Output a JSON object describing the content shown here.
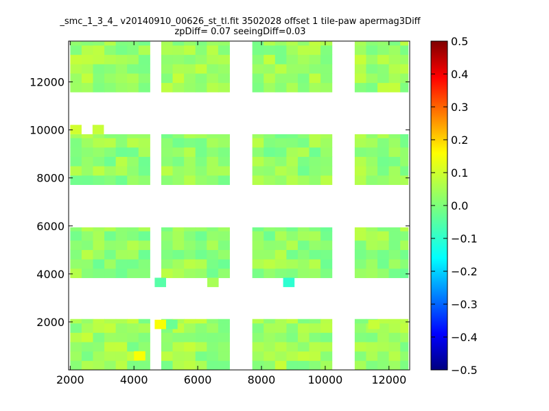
{
  "chart_data": {
    "type": "heatmap",
    "title_lines": [
      "_smc_1_3_4_ v20140910_00626_st_tl.fit 3502028 offset 1 tile-paw apermag3Diff",
      "zpDiff= 0.07 seeingDiff=0.03"
    ],
    "xlim": [
      1950,
      12650
    ],
    "ylim": [
      0,
      13700
    ],
    "xticks": [
      {
        "value": 2000,
        "label": "2000"
      },
      {
        "value": 4000,
        "label": "4000"
      },
      {
        "value": 6000,
        "label": "6000"
      },
      {
        "value": 8000,
        "label": "8000"
      },
      {
        "value": 10000,
        "label": "10000"
      },
      {
        "value": 12000,
        "label": "12000"
      }
    ],
    "yticks": [
      {
        "value": 2000,
        "label": "2000"
      },
      {
        "value": 4000,
        "label": "4000"
      },
      {
        "value": 6000,
        "label": "6000"
      },
      {
        "value": 8000,
        "label": "8000"
      },
      {
        "value": 10000,
        "label": "10000"
      },
      {
        "value": 12000,
        "label": "12000"
      }
    ],
    "colorbar": {
      "colormap": "jet",
      "range": [
        -0.5,
        0.5
      ],
      "ticks": [
        {
          "value": 0.5,
          "label": "0.5"
        },
        {
          "value": 0.4,
          "label": "0.4"
        },
        {
          "value": 0.3,
          "label": "0.3"
        },
        {
          "value": 0.2,
          "label": "0.2"
        },
        {
          "value": 0.1,
          "label": "0.1"
        },
        {
          "value": 0.0,
          "label": "0.0"
        },
        {
          "value": -0.1,
          "label": "−0.1"
        },
        {
          "value": -0.2,
          "label": "−0.2"
        },
        {
          "value": -0.3,
          "label": "−0.3"
        },
        {
          "value": -0.4,
          "label": "−0.4"
        },
        {
          "value": -0.5,
          "label": "−0.5"
        }
      ]
    },
    "cell_size": {
      "dx": 357,
      "dy": 390
    },
    "cells": [
      {
        "x0": 2000,
        "x1": 12600,
        "y0": 11580,
        "y1": 13680,
        "value": 0.03
      },
      {
        "x0": 2000,
        "x1": 12600,
        "y0": 7720,
        "y1": 9820,
        "value": 0.02
      },
      {
        "x0": 2000,
        "x1": 12600,
        "y0": 3840,
        "y1": 5940,
        "value": 0.02
      },
      {
        "x0": 2000,
        "x1": 12600,
        "y0": 0,
        "y1": 2120,
        "value": 0.03
      }
    ],
    "mask_gaps_x": [
      [
        4330,
        4670
      ],
      [
        6970,
        7680
      ],
      [
        10000,
        10650
      ]
    ],
    "isolated_cells": [
      {
        "x": 2000,
        "y": 9820,
        "value": 0.08
      },
      {
        "x": 2700,
        "y": 9820,
        "value": 0.07
      },
      {
        "x": 4000,
        "y": 390,
        "value": 0.12
      },
      {
        "x": 4650,
        "y": 1700,
        "value": 0.12
      },
      {
        "x": 5010,
        "y": 1700,
        "value": -0.02
      },
      {
        "x": 4650,
        "y": 3450,
        "value": -0.04
      },
      {
        "x": 6300,
        "y": 3450,
        "value": 0.04
      },
      {
        "x": 8680,
        "y": 3450,
        "value": -0.08
      },
      {
        "x": 11350,
        "y": 1700,
        "value": 0.07
      }
    ]
  }
}
